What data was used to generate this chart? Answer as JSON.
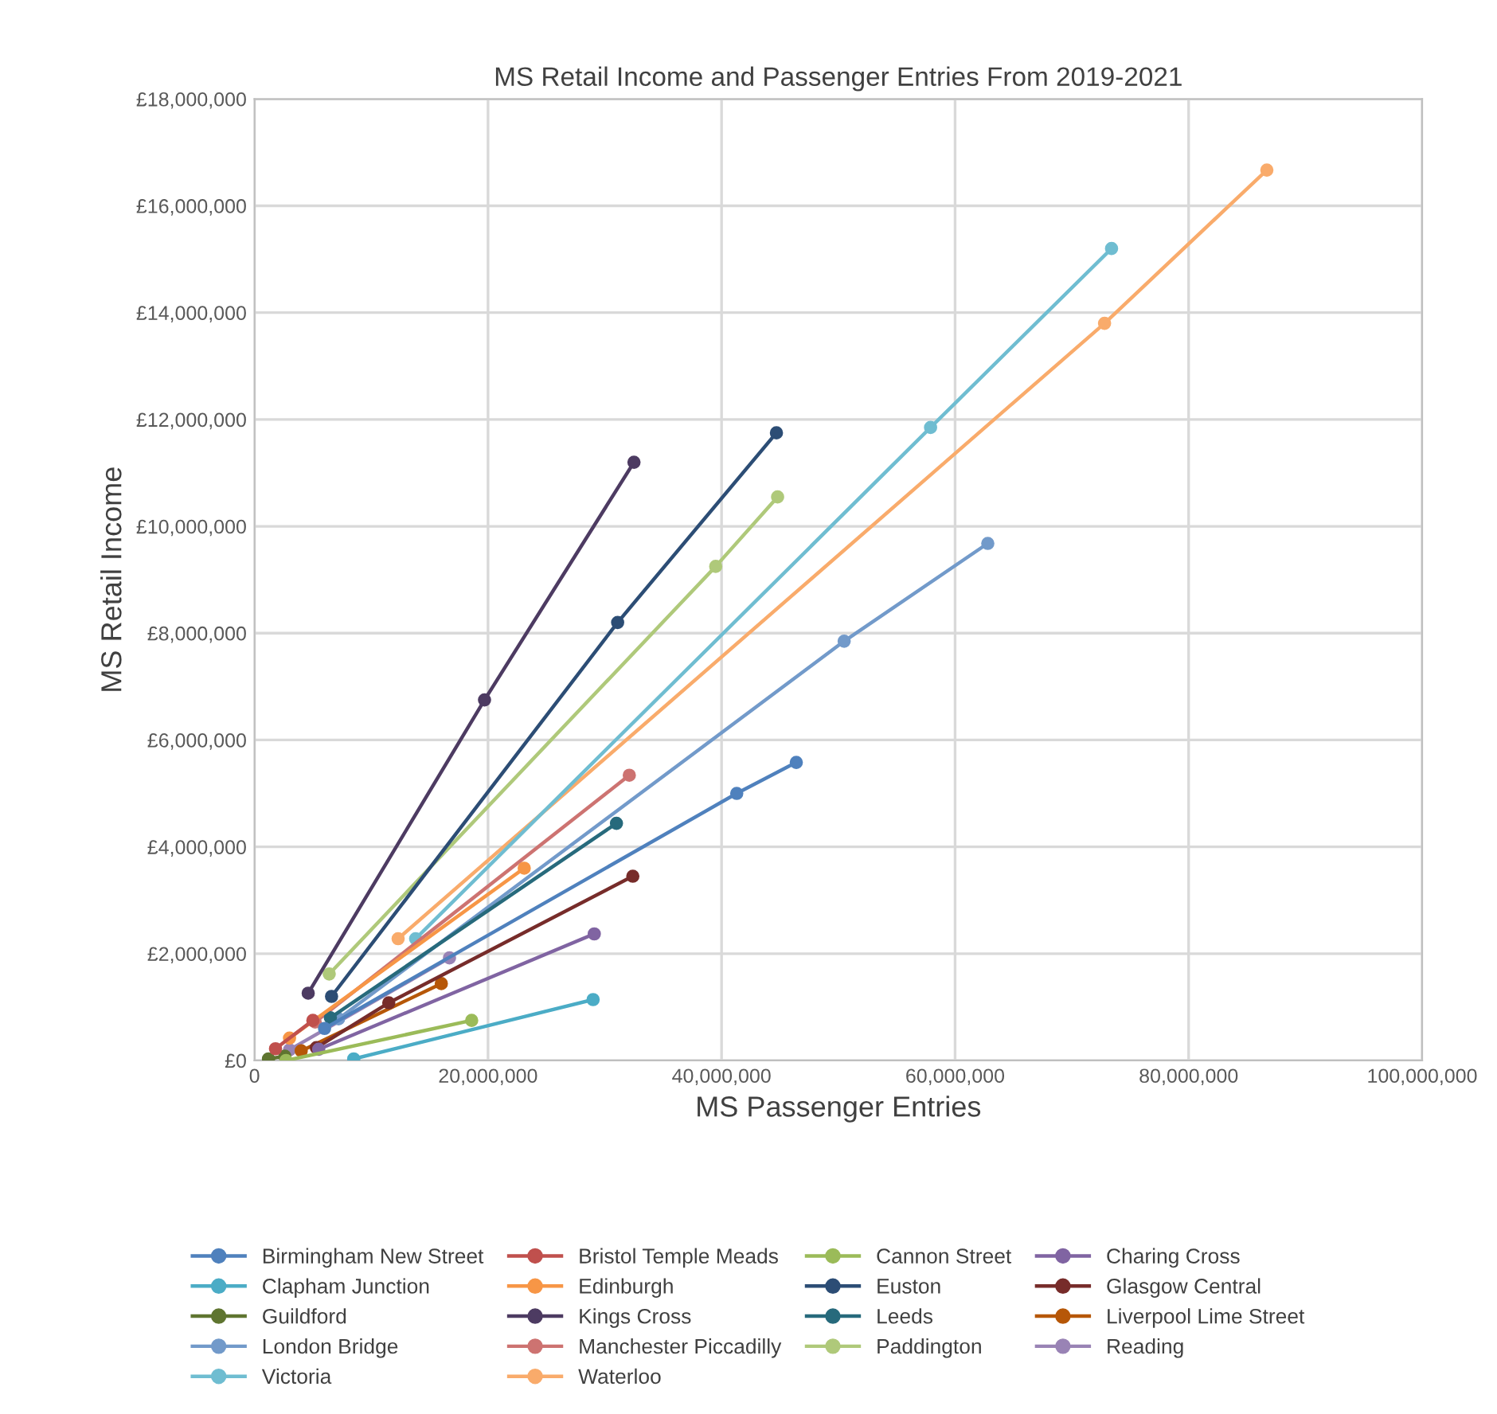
{
  "chart_data": {
    "type": "line",
    "title": "MS Retail Income and Passenger Entries From 2019-2021",
    "xlabel": "MS Passenger Entries",
    "ylabel": "MS Retail Income",
    "xlim": [
      0,
      100000000
    ],
    "ylim": [
      0,
      18000000
    ],
    "xticks": [
      {
        "value": 0,
        "label": "0"
      },
      {
        "value": 20000000,
        "label": "20,000,000"
      },
      {
        "value": 40000000,
        "label": "40,000,000"
      },
      {
        "value": 60000000,
        "label": "60,000,000"
      },
      {
        "value": 80000000,
        "label": "80,000,000"
      },
      {
        "value": 100000000,
        "label": "100,000,000"
      }
    ],
    "yticks": [
      {
        "value": 0,
        "label": "£0"
      },
      {
        "value": 2000000,
        "label": "£2,000,000"
      },
      {
        "value": 4000000,
        "label": "£4,000,000"
      },
      {
        "value": 6000000,
        "label": "£6,000,000"
      },
      {
        "value": 8000000,
        "label": "£8,000,000"
      },
      {
        "value": 10000000,
        "label": "£10,000,000"
      },
      {
        "value": 12000000,
        "label": "£12,000,000"
      },
      {
        "value": 14000000,
        "label": "£14,000,000"
      },
      {
        "value": 16000000,
        "label": "£16,000,000"
      },
      {
        "value": 18000000,
        "label": "£18,000,000"
      }
    ],
    "grid": true,
    "legend": "bottom",
    "marker": "circle",
    "line_style": "solid",
    "series": [
      {
        "name": "Birmingham New Street",
        "color": "#4f81bd",
        "x": [
          46400000,
          41300000,
          6000000
        ],
        "values": [
          5580000,
          5000000,
          600000
        ]
      },
      {
        "name": "Bristol Temple Meads",
        "color": "#c0504d",
        "x": [
          5000000,
          1800000
        ],
        "values": [
          750000,
          220000
        ]
      },
      {
        "name": "Cannon Street",
        "color": "#9bbb59",
        "x": [
          18600000,
          2700000
        ],
        "values": [
          750000,
          0
        ]
      },
      {
        "name": "Charing Cross",
        "color": "#8064a2",
        "x": [
          29100000,
          5500000
        ],
        "values": [
          2370000,
          210000
        ]
      },
      {
        "name": "Clapham Junction",
        "color": "#4bacc6",
        "x": [
          29000000,
          8500000
        ],
        "values": [
          1140000,
          30000
        ]
      },
      {
        "name": "Edinburgh",
        "color": "#f79646",
        "x": [
          23100000,
          3000000
        ],
        "values": [
          3600000,
          420000
        ]
      },
      {
        "name": "Euston",
        "color": "#2c4d75",
        "x": [
          44700000,
          31100000,
          6600000
        ],
        "values": [
          11750000,
          8200000,
          1200000
        ]
      },
      {
        "name": "Glasgow Central",
        "color": "#772c2a",
        "x": [
          32400000,
          11500000,
          5300000
        ],
        "values": [
          3450000,
          1080000,
          240000
        ]
      },
      {
        "name": "Guildford",
        "color": "#5f7530",
        "x": [
          2600000,
          1200000
        ],
        "values": [
          80000,
          30000
        ]
      },
      {
        "name": "Kings Cross",
        "color": "#4d3b62",
        "x": [
          32500000,
          19700000,
          4600000
        ],
        "values": [
          11200000,
          6750000,
          1260000
        ]
      },
      {
        "name": "Leeds",
        "color": "#276a7c",
        "x": [
          31000000,
          6500000
        ],
        "values": [
          4440000,
          800000
        ]
      },
      {
        "name": "Liverpool Lime Street",
        "color": "#b65708",
        "x": [
          16000000,
          4000000
        ],
        "values": [
          1440000,
          180000
        ]
      },
      {
        "name": "London Bridge",
        "color": "#729aca",
        "x": [
          62800000,
          50500000,
          7200000
        ],
        "values": [
          9680000,
          7850000,
          780000
        ]
      },
      {
        "name": "Manchester Piccadilly",
        "color": "#cd7371",
        "x": [
          32100000,
          5200000
        ],
        "values": [
          5340000,
          720000
        ]
      },
      {
        "name": "Paddington",
        "color": "#afc97a",
        "x": [
          44800000,
          39500000,
          6400000
        ],
        "values": [
          10550000,
          9250000,
          1620000
        ]
      },
      {
        "name": "Reading",
        "color": "#9983b5",
        "x": [
          16700000,
          3000000
        ],
        "values": [
          1920000,
          200000
        ]
      },
      {
        "name": "Victoria",
        "color": "#6fbdd1",
        "x": [
          73400000,
          57900000,
          13800000
        ],
        "values": [
          15200000,
          11850000,
          2280000
        ]
      },
      {
        "name": "Waterloo",
        "color": "#f9ab6b",
        "x": [
          86700000,
          72800000,
          12300000
        ],
        "values": [
          16670000,
          13800000,
          2280000
        ]
      }
    ]
  }
}
